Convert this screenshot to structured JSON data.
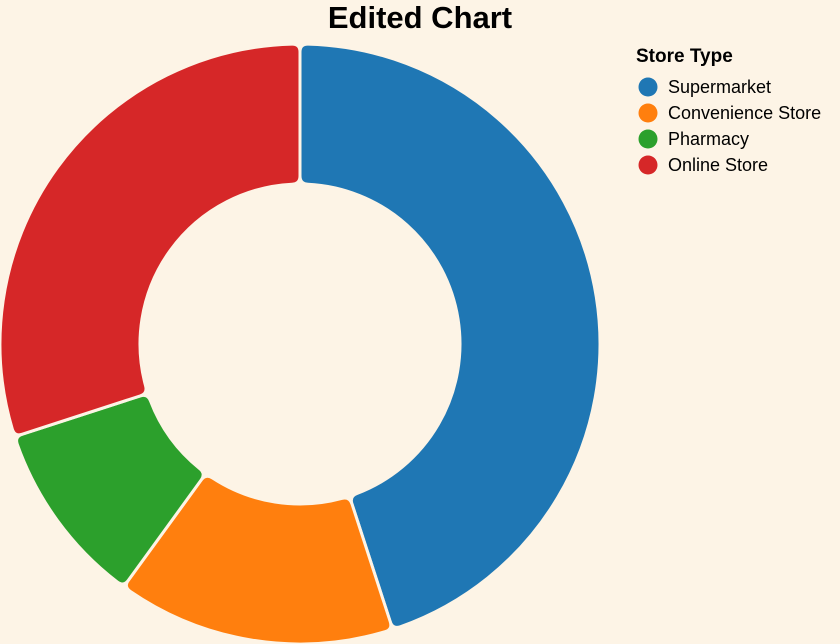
{
  "chart_data": {
    "type": "pie",
    "title": "Edited Chart",
    "legend_title": "Store Type",
    "legend_position": "top-right",
    "categories": [
      "Supermarket",
      "Convenience Store",
      "Pharmacy",
      "Online Store"
    ],
    "values": [
      45,
      15,
      10,
      30
    ],
    "colors": [
      "#1f77b4",
      "#ff7f0e",
      "#2ca02c",
      "#d62728"
    ],
    "donut": true
  }
}
